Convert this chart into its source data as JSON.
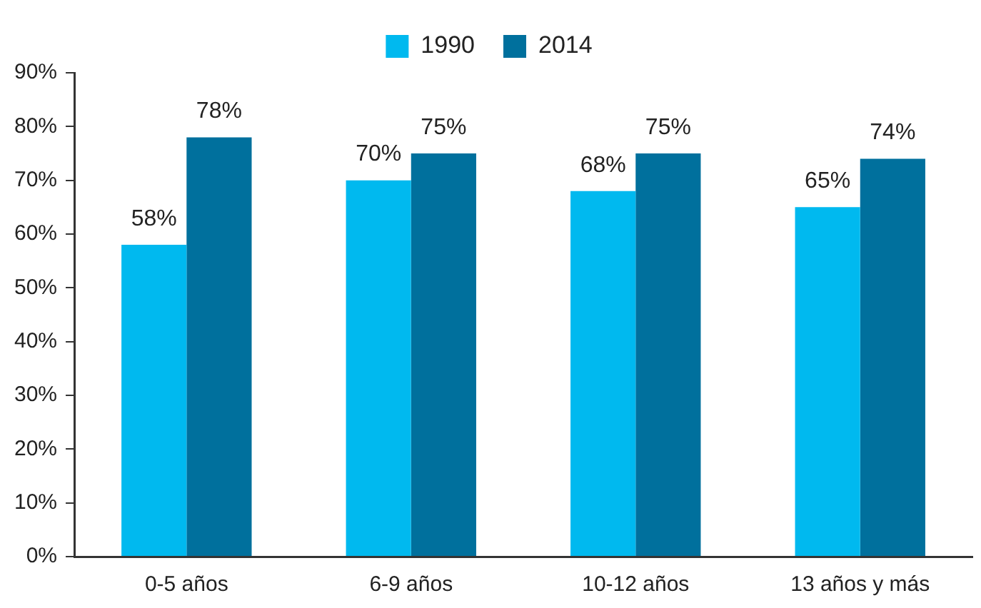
{
  "chart_data": {
    "type": "bar",
    "categories": [
      "0-5 años",
      "6-9 años",
      "10-12 años",
      "13 años y más"
    ],
    "series": [
      {
        "name": "1990",
        "color": "#00b9ef",
        "values": [
          58,
          70,
          68,
          65
        ],
        "value_labels": [
          "58%",
          "70%",
          "68%",
          "65%"
        ]
      },
      {
        "name": "2014",
        "color": "#00709d",
        "values": [
          78,
          75,
          75,
          74
        ],
        "value_labels": [
          "78%",
          "75%",
          "75%",
          "74%"
        ]
      }
    ],
    "ylim": [
      0,
      90
    ],
    "yticks": [
      {
        "value": 0,
        "label": "0%"
      },
      {
        "value": 10,
        "label": "10%"
      },
      {
        "value": 20,
        "label": "20%"
      },
      {
        "value": 30,
        "label": "30%"
      },
      {
        "value": 40,
        "label": "40%"
      },
      {
        "value": 50,
        "label": "50%"
      },
      {
        "value": 60,
        "label": "60%"
      },
      {
        "value": 70,
        "label": "70%"
      },
      {
        "value": 80,
        "label": "80%"
      },
      {
        "value": 90,
        "label": "90%"
      }
    ],
    "grid": false,
    "legend": "top"
  }
}
